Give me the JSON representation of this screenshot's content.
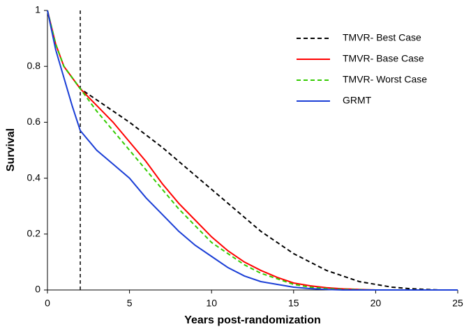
{
  "chart_data": {
    "type": "line",
    "xlabel": "Years post-randomization",
    "ylabel": "Survival",
    "xlim": [
      0,
      25
    ],
    "ylim": [
      0,
      1
    ],
    "xticks": [
      0,
      5,
      10,
      15,
      20,
      25
    ],
    "yticks": [
      0,
      0.2,
      0.4,
      0.6,
      0.8,
      1
    ],
    "vline_x": 2,
    "legend": "upper right",
    "x": [
      0,
      0.5,
      1,
      1.5,
      2,
      3,
      4,
      5,
      6,
      7,
      8,
      9,
      10,
      11,
      12,
      13,
      14,
      15,
      16,
      17,
      18,
      19,
      20,
      21,
      22,
      23,
      24,
      25
    ],
    "series": [
      {
        "name": "TMVR- Best Case",
        "color": "#000000",
        "dash": true,
        "values": [
          1,
          0.88,
          0.8,
          0.76,
          0.72,
          0.68,
          0.64,
          0.6,
          0.555,
          0.51,
          0.46,
          0.41,
          0.36,
          0.31,
          0.26,
          0.21,
          0.17,
          0.13,
          0.1,
          0.07,
          0.05,
          0.03,
          0.02,
          0.01,
          0.005,
          0.002,
          0,
          0
        ]
      },
      {
        "name": "TMVR- Base Case",
        "color": "#ff0000",
        "dash": false,
        "values": [
          1,
          0.88,
          0.8,
          0.76,
          0.72,
          0.66,
          0.6,
          0.53,
          0.46,
          0.38,
          0.31,
          0.25,
          0.19,
          0.14,
          0.1,
          0.07,
          0.045,
          0.025,
          0.015,
          0.008,
          0.004,
          0.002,
          0,
          0,
          0,
          0,
          0,
          0
        ]
      },
      {
        "name": "TMVR- Worst Case",
        "color": "#33cc00",
        "dash": true,
        "values": [
          1,
          0.88,
          0.8,
          0.76,
          0.72,
          0.64,
          0.57,
          0.5,
          0.43,
          0.36,
          0.29,
          0.23,
          0.17,
          0.13,
          0.09,
          0.06,
          0.04,
          0.02,
          0.01,
          0.005,
          0.002,
          0.001,
          0,
          0,
          0,
          0,
          0,
          0
        ]
      },
      {
        "name": "GRMT",
        "color": "#1a3ed6",
        "dash": false,
        "values": [
          1,
          0.86,
          0.76,
          0.66,
          0.57,
          0.5,
          0.45,
          0.4,
          0.33,
          0.27,
          0.21,
          0.16,
          0.12,
          0.08,
          0.05,
          0.03,
          0.02,
          0.01,
          0.005,
          0.002,
          0,
          0,
          0,
          0,
          0,
          0,
          0,
          0
        ]
      }
    ]
  }
}
